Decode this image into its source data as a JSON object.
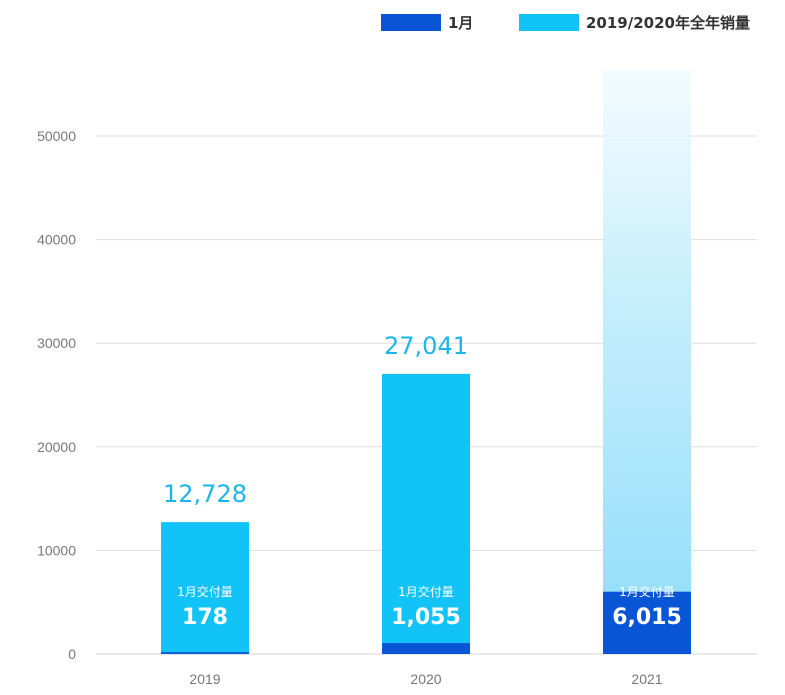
{
  "legend": {
    "jan_label": "1月",
    "total_label": "2019/2020年全年销量"
  },
  "colors": {
    "jan": "#0a55d6",
    "total": "#11c3f7",
    "grid": "#dddddd",
    "total_label": "#1ab6ea"
  },
  "chart_data": {
    "type": "bar",
    "categories": [
      "2019",
      "2020",
      "2021"
    ],
    "series": [
      {
        "name": "2019/2020年全年销量",
        "values": [
          12728,
          27041,
          null
        ]
      },
      {
        "name": "1月",
        "values": [
          178,
          1055,
          6015
        ]
      }
    ],
    "total_labels": [
      "12,728",
      "27,041",
      ""
    ],
    "inner_title": "1月交付量",
    "inner_values": [
      "178",
      "1,055",
      "6,015"
    ],
    "projected_2021_fade": true,
    "yticks": [
      "0",
      "10000",
      "20000",
      "30000",
      "40000",
      "50000"
    ],
    "ylim": [
      0,
      50000
    ],
    "grid": true,
    "legend_position": "top-right"
  }
}
